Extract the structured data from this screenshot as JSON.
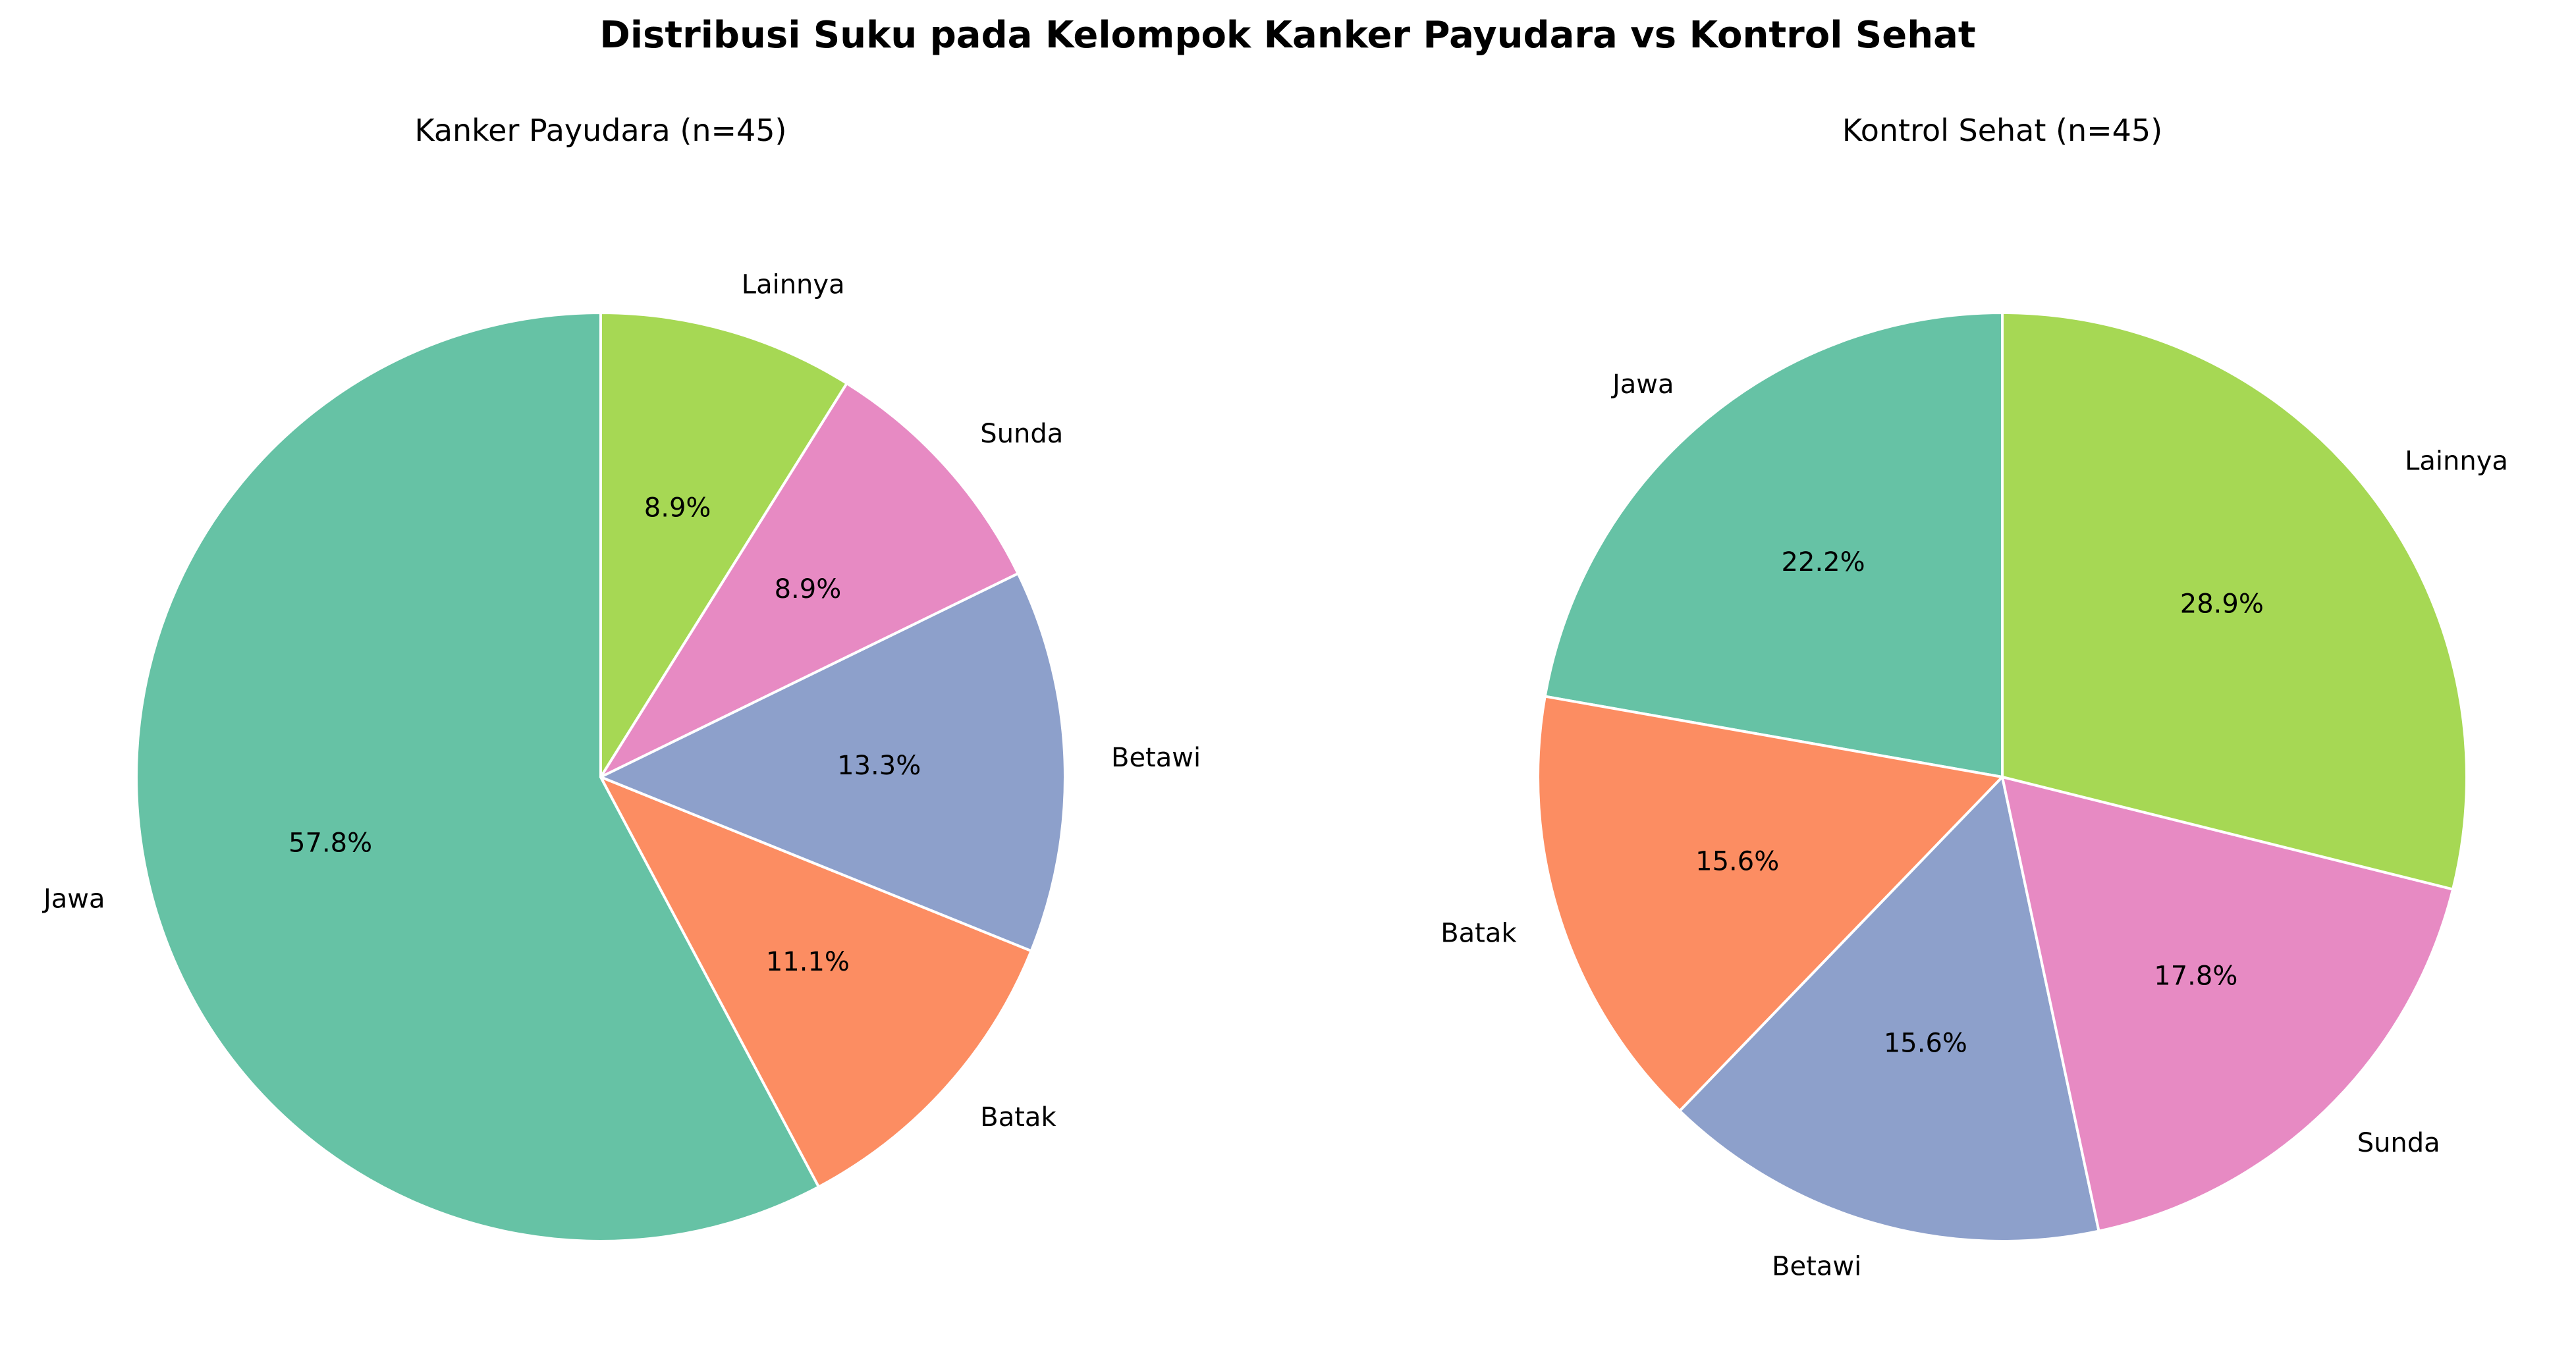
{
  "title": "Distribusi Suku pada Kelompok Kanker Payudara vs Kontrol Sehat",
  "colors": {
    "Jawa": "#66c2a5",
    "Batak": "#fc8d62",
    "Betawi": "#8da0cb",
    "Sunda": "#e78ac3",
    "Lainnya": "#a6d854"
  },
  "chart_data": [
    {
      "type": "pie",
      "title": "Kanker Payudara (n=45)",
      "start_angle_deg": 90,
      "direction": "counterclockwise",
      "slices": [
        {
          "label": "Jawa",
          "value": 26,
          "pct_label": "57.8%"
        },
        {
          "label": "Batak",
          "value": 5,
          "pct_label": "11.1%"
        },
        {
          "label": "Betawi",
          "value": 6,
          "pct_label": "13.3%"
        },
        {
          "label": "Sunda",
          "value": 4,
          "pct_label": "8.9%"
        },
        {
          "label": "Lainnya",
          "value": 4,
          "pct_label": "8.9%"
        }
      ]
    },
    {
      "type": "pie",
      "title": "Kontrol Sehat (n=45)",
      "start_angle_deg": 90,
      "direction": "counterclockwise",
      "slices": [
        {
          "label": "Jawa",
          "value": 10,
          "pct_label": "22.2%"
        },
        {
          "label": "Batak",
          "value": 7,
          "pct_label": "15.6%"
        },
        {
          "label": "Betawi",
          "value": 7,
          "pct_label": "15.6%"
        },
        {
          "label": "Sunda",
          "value": 8,
          "pct_label": "17.8%"
        },
        {
          "label": "Lainnya",
          "value": 13,
          "pct_label": "28.9%"
        }
      ]
    }
  ]
}
